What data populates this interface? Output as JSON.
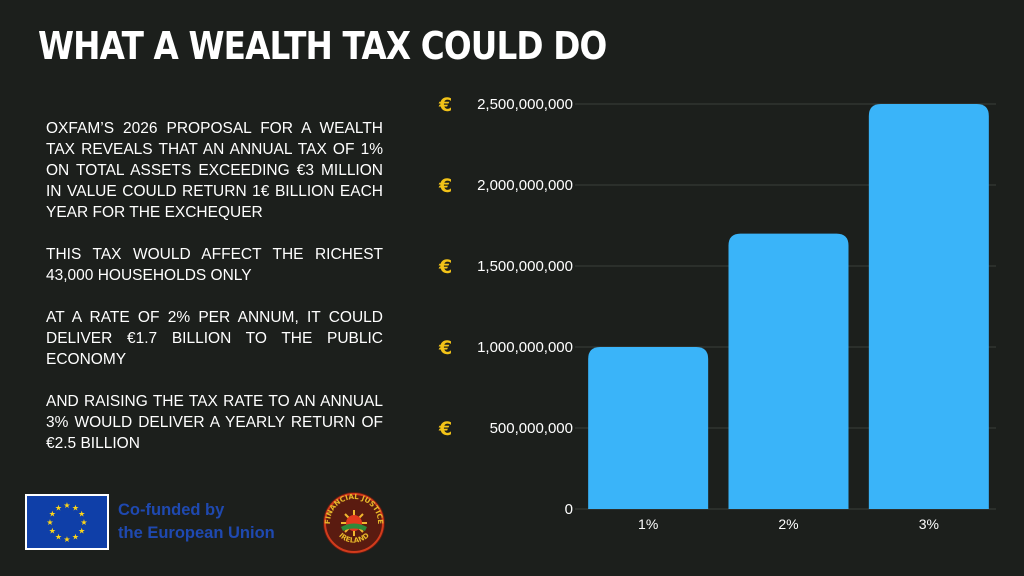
{
  "title": "WHAT A WEALTH TAX COULD DO",
  "paragraphs": [
    "OXFAM’S 2026 PROPOSAL FOR A WEALTH TAX REVEALS THAT AN ANNUAL TAX OF 1% ON TOTAL ASSETS EXCEEDING €3 MILLION IN VALUE COULD  RETURN 1€ BILLION EACH YEAR FOR THE EXCHEQUER",
    "THIS TAX WOULD AFFECT THE RICHEST 43,000 HOUSEHOLDS ONLY",
    "AT A RATE OF 2% PER ANNUM, IT COULD DELIVER €1.7 BILLION TO THE PUBLIC ECONOMY",
    "AND RAISING THE TAX RATE TO AN ANNUAL 3% WOULD DELIVER A YEARLY RETURN OF €2.5 BILLION"
  ],
  "footer": {
    "eu_line1": "Co-funded by",
    "eu_line2": "the European Union",
    "logo_text": "FINANCIAL JUSTICE IRELAND"
  },
  "colors": {
    "background": "#1c1f1c",
    "bar": "#3ab4f9",
    "euro_symbol": "#f2c318",
    "eu_blue": "#1f49b0"
  },
  "chart_data": {
    "type": "bar",
    "categories": [
      "1%",
      "2%",
      "3%"
    ],
    "values": [
      1000000000,
      1700000000,
      2500000000
    ],
    "ylim": [
      0,
      2500000000
    ],
    "yticks": [
      0,
      500000000,
      1000000000,
      1500000000,
      2000000000,
      2500000000
    ],
    "ytick_labels": [
      "0",
      "500,000,000",
      "1,000,000,000",
      "1,500,000,000",
      "2,000,000,000",
      "2,500,000,000"
    ],
    "currency_symbol": "€",
    "grid": true,
    "legend": "none"
  }
}
